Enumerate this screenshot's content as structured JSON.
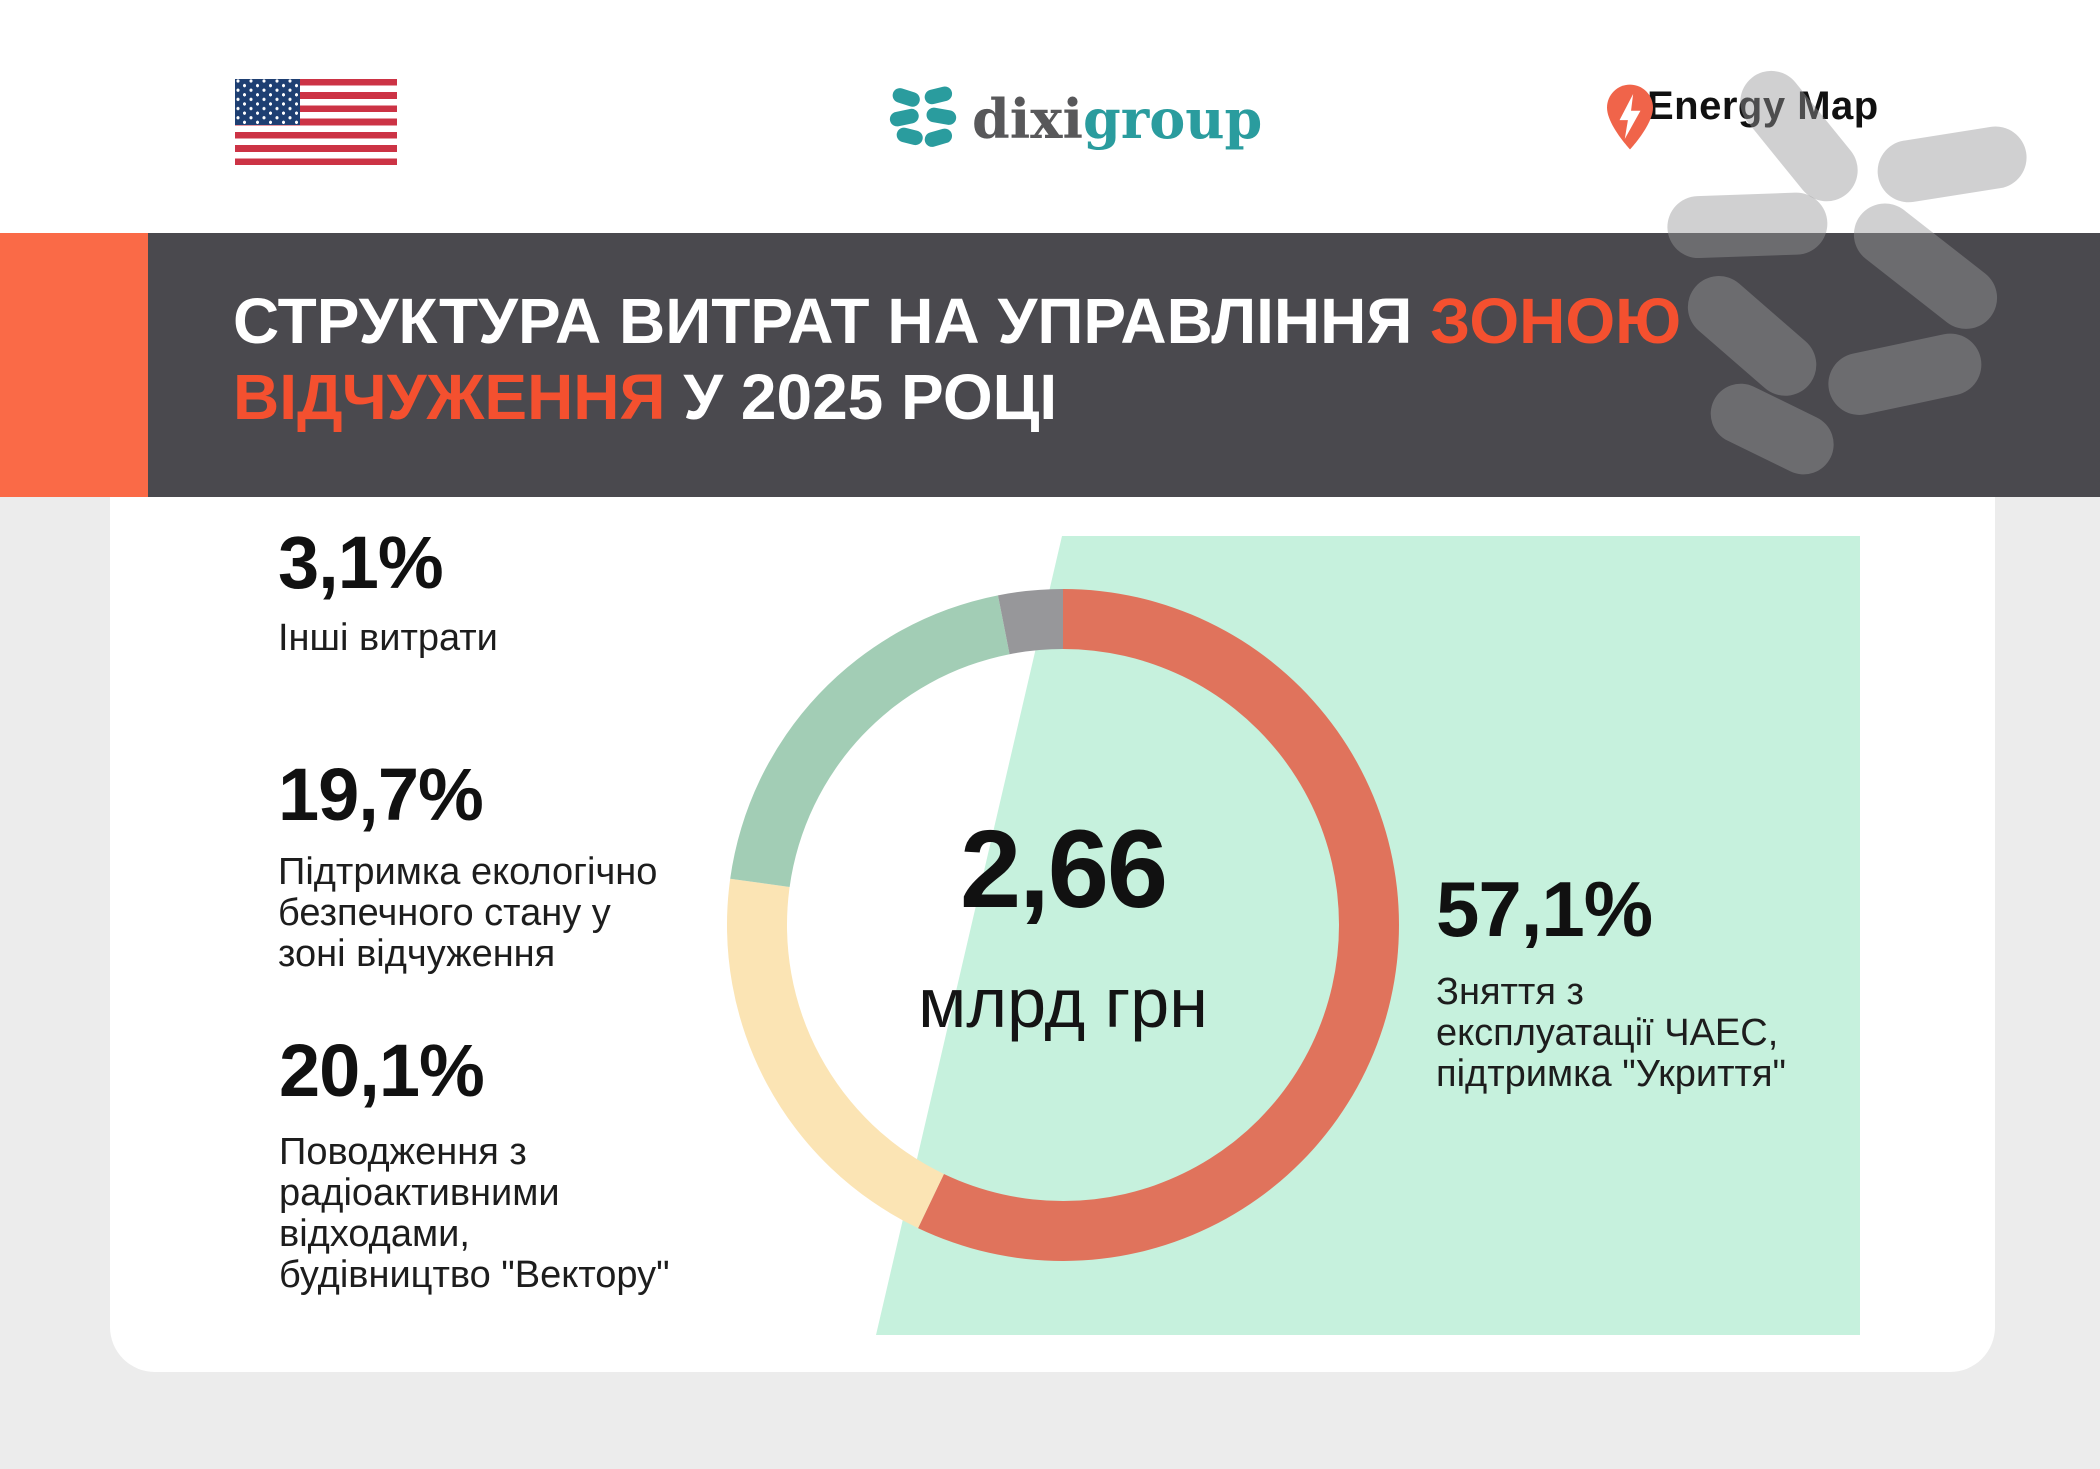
{
  "header": {
    "flag": "us-flag",
    "dixigroup": {
      "dixi": "dixi",
      "group": "group"
    },
    "energy_map": {
      "label": "Energy Map"
    }
  },
  "banner": {
    "line1_white": "СТРУКТУРА ВИТРАТ НА УПРАВЛІННЯ ",
    "line1_accent": "ЗОНОЮ",
    "line2_accent": "ВІДЧУЖЕННЯ",
    "line2_white": " У 2025 РОЦІ"
  },
  "center": {
    "value": "2,66",
    "unit": "млрд грн"
  },
  "stats": [
    {
      "value": "3,1%",
      "label": "Інші витрати"
    },
    {
      "value": "19,7%",
      "label": "Підтримка екологічно\nбезпечного стану у\nзоні відчуження"
    },
    {
      "value": "20,1%",
      "label": "Поводження з\nрадіоактивними\nвідходами,\nбудівництво \"Вектору\""
    },
    {
      "value": "57,1%",
      "label": "Зняття з\nексплуатації ЧАЕС,\nпідтримка \"Укриття\""
    }
  ],
  "chart_data": {
    "type": "pie",
    "subtype": "donut",
    "title": "СТРУКТУРА ВИТРАТ НА УПРАВЛІННЯ ЗОНОЮ ВІДЧУЖЕННЯ У 2025 РОЦІ",
    "center_value": "2,66",
    "center_unit": "млрд грн",
    "start_angle_deg": 0,
    "direction": "clockwise",
    "donut_inner_ratio": 0.82,
    "segments": [
      {
        "label": "Зняття з експлуатації ЧАЕС, підтримка \"Укриття\"",
        "value": 57.1,
        "color": "#E0735C"
      },
      {
        "label": "Поводження з радіоактивними відходами, будівництво \"Вектору\"",
        "value": 20.1,
        "color": "#FBE4B4"
      },
      {
        "label": "Підтримка екологічно безпечного стану у зоні відчуження",
        "value": 19.7,
        "color": "#A2CDB5"
      },
      {
        "label": "Інші витрати",
        "value": 3.1,
        "color": "#97979A"
      }
    ]
  },
  "colors": {
    "band": "#4A494E",
    "band_accent_block": "#FA6A47",
    "title_accent": "#F4502F",
    "mint_panel": "#C6F1DD",
    "page_background": "#ECECEC",
    "card_background": "#FFFFFF"
  }
}
